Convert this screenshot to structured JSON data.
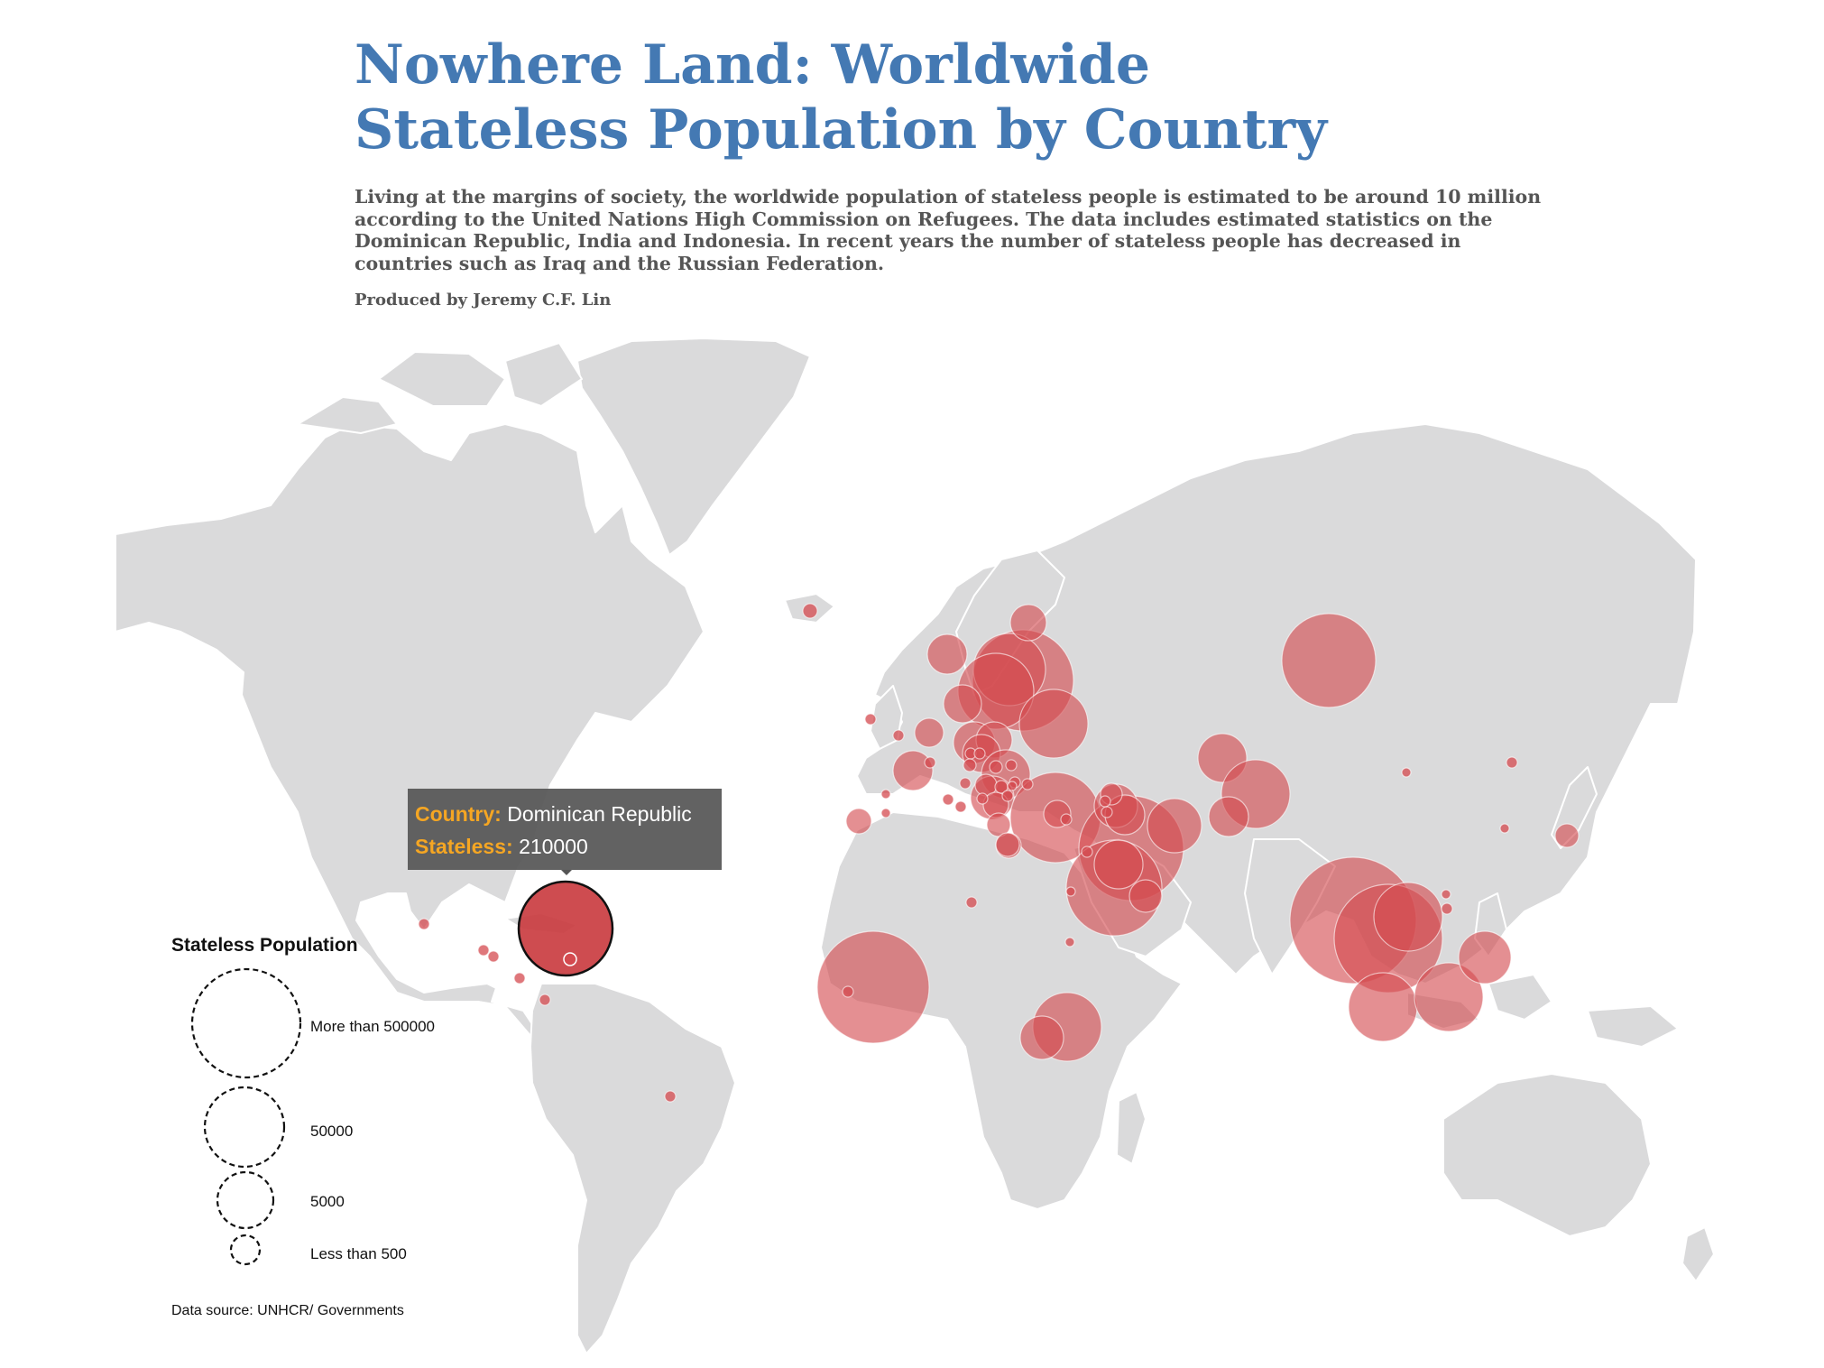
{
  "header": {
    "title": "Nowhere Land: Worldwide Stateless Population by Country",
    "subtitle": "Living at the margins of society, the worldwide population of stateless people is estimated to be around 10 million according to the United Nations High Commission on Refugees. The data includes estimated statistics on the Dominican Republic, India and Indonesia. In recent years the number of stateless people has decreased in countries such as Iraq and the Russian Federation.",
    "byline": "Produced by  Jeremy C.F. Lin"
  },
  "colors": {
    "land": "#dadadb",
    "border": "#ffffff",
    "bubble": "#d44a4f",
    "highlight_bubble": "#c9383d",
    "title": "#4479b3",
    "tooltip_key": "#f5a623"
  },
  "tooltip": {
    "country_key": "Country:",
    "country_value": "Dominican Republic",
    "stateless_key": "Stateless:",
    "stateless_value": "210000"
  },
  "legend": {
    "title": "Stateless Population",
    "items": [
      {
        "label": "More than 500000"
      },
      {
        "label": "50000"
      },
      {
        "label": "5000"
      },
      {
        "label": "Less than 500"
      }
    ]
  },
  "source": "Data source: UNHCR/ Governments"
}
